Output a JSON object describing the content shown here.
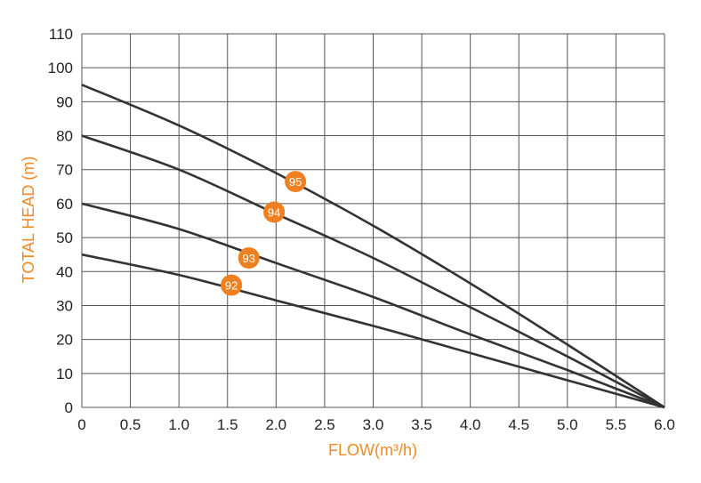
{
  "chart_data": {
    "type": "line",
    "title": "",
    "xlabel": "FLOW(m³/h)",
    "ylabel": "TOTAL HEAD (m)",
    "xlim": [
      0,
      6.0
    ],
    "ylim": [
      0,
      110
    ],
    "x_ticks": [
      "0",
      "0.5",
      "1.0",
      "1.5",
      "2.0",
      "2.5",
      "3.0",
      "3.5",
      "4.0",
      "4.5",
      "5.0",
      "5.5",
      "6.0"
    ],
    "y_ticks": [
      "0",
      "10",
      "20",
      "30",
      "40",
      "50",
      "60",
      "70",
      "80",
      "90",
      "100",
      "110"
    ],
    "grid": true,
    "legend": "none",
    "series": [
      {
        "name": "95",
        "x": [
          0,
          1.0,
          2.0,
          3.0,
          4.0,
          5.0,
          6.0
        ],
        "y": [
          95,
          83,
          69,
          53.5,
          36.5,
          18.5,
          0
        ],
        "label_at": [
          2.2,
          66.5
        ]
      },
      {
        "name": "94",
        "x": [
          0,
          1.0,
          2.0,
          3.0,
          4.0,
          5.0,
          6.0
        ],
        "y": [
          80,
          70,
          57,
          44,
          29.5,
          15,
          0
        ],
        "label_at": [
          1.98,
          57.5
        ]
      },
      {
        "name": "93",
        "x": [
          0,
          1.0,
          2.0,
          3.0,
          4.0,
          5.0,
          6.0
        ],
        "y": [
          60,
          52.5,
          42.5,
          32.5,
          21.5,
          11,
          0
        ],
        "label_at": [
          1.72,
          44
        ]
      },
      {
        "name": "92",
        "x": [
          0,
          1.0,
          2.0,
          3.0,
          4.0,
          5.0,
          6.0
        ],
        "y": [
          45,
          39,
          31.5,
          24,
          16,
          8,
          0
        ],
        "label_at": [
          1.54,
          36
        ]
      }
    ],
    "colors": {
      "line": "#333333",
      "grid": "#555555",
      "axis_title": "#f08a24",
      "badge": "#ee8022"
    }
  }
}
